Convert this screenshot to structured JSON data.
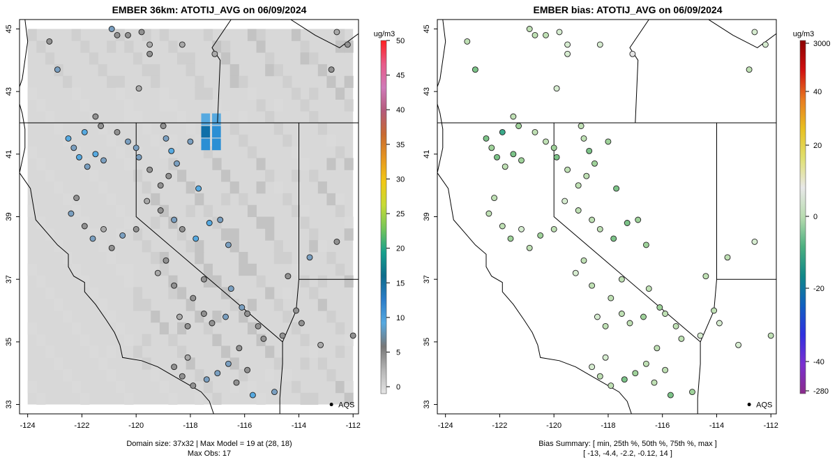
{
  "colors": {
    "domain_fill": "#d8d8d8",
    "water": "#ffffff",
    "coast": "#000000",
    "ticks": "#000000"
  },
  "left": {
    "title": "EMBER 36km: ATOTIJ_AVG on 06/09/2024",
    "caption_line1": "Domain size: 37x32 | Max Model = 19 at (28, 18)",
    "caption_line2": "Max Obs: 17"
  },
  "right": {
    "title": "EMBER bias: ATOTIJ_AVG on 06/09/2024",
    "caption_line1": "Bias Summary: [ min, 25th %, 50th %, 75th %, max ]",
    "caption_line2": "[ -13,   -4.4,   -2.2,   -0.12,   14 ]"
  },
  "aqs_label": "AQS",
  "chart_data": [
    {
      "type": "heatmap",
      "title": "EMBER 36km: ATOTIJ_AVG on 06/09/2024",
      "x_axis": {
        "ticks": [
          -124,
          -122,
          -120,
          -118,
          -116,
          -114,
          -112
        ],
        "range": [
          -124.3,
          -111.8
        ]
      },
      "y_axis": {
        "ticks": [
          33,
          35,
          37,
          39,
          41,
          43,
          45
        ],
        "range": [
          32.7,
          45.3
        ]
      },
      "colorbar": {
        "units": "ug/m3",
        "ticks": [
          0,
          5,
          10,
          15,
          20,
          25,
          30,
          35,
          40,
          45,
          50
        ],
        "range": [
          -1,
          50
        ],
        "colors": [
          "#e5e5e5",
          "#b5b5b5",
          "#777777",
          "#56a9e0",
          "#2b7cc8",
          "#0d6d8c",
          "#16a08c",
          "#74c55a",
          "#c6db35",
          "#f2c815",
          "#e69620",
          "#c86a30",
          "#b45a7a",
          "#d07ab8",
          "#e85a88",
          "#ff2020"
        ]
      },
      "highlight_cells": [
        {
          "lon": -117.4,
          "lat": 41.3,
          "value": 15
        },
        {
          "lon": -117.4,
          "lat": 41.7,
          "value": 18
        },
        {
          "lon": -117.0,
          "lat": 41.3,
          "value": 15
        },
        {
          "lon": -117.0,
          "lat": 41.7,
          "value": 14
        },
        {
          "lon": -117.4,
          "lat": 42.1,
          "value": 12
        },
        {
          "lon": -117.0,
          "lat": 42.1,
          "value": 11
        }
      ]
    },
    {
      "type": "scatter",
      "title": "EMBER bias: ATOTIJ_AVG on 06/09/2024",
      "x_axis": {
        "ticks": [
          -124,
          -122,
          -120,
          -118,
          -116,
          -114,
          -112
        ],
        "range": [
          -124.3,
          -111.8
        ]
      },
      "y_axis": {
        "ticks": [
          33,
          35,
          37,
          39,
          41,
          43,
          45
        ],
        "range": [
          32.7,
          45.3
        ]
      },
      "colorbar": {
        "units": "ug/m3",
        "ticks": [
          "3000",
          "40",
          "20",
          "0",
          "-20",
          "-40",
          "-280"
        ],
        "colors": [
          "#8b0000",
          "#d01010",
          "#e87a20",
          "#e8c020",
          "#e0e070",
          "#e8e8e8",
          "#b8dcb0",
          "#4cb080",
          "#108888",
          "#1060c0",
          "#3030e0",
          "#7a30d0",
          "#8a2b8a"
        ]
      },
      "summary": {
        "min": -13,
        "p25": -4.4,
        "p50": -2.2,
        "p75": -0.12,
        "max": 14
      }
    }
  ],
  "stations": [
    [
      -120.9,
      45.0,
      9,
      -4
    ],
    [
      -120.7,
      44.8,
      6,
      -3
    ],
    [
      -120.3,
      44.8,
      6,
      -3
    ],
    [
      -119.8,
      44.9,
      5,
      -2
    ],
    [
      -119.5,
      44.5,
      4,
      -1
    ],
    [
      -118.3,
      44.5,
      3,
      -0.5
    ],
    [
      -117.1,
      44.2,
      3,
      -0.3
    ],
    [
      -119.5,
      44.2,
      5,
      -2
    ],
    [
      -123.2,
      44.6,
      5,
      -3
    ],
    [
      -122.9,
      43.7,
      10,
      -6
    ],
    [
      -119.9,
      43.1,
      4,
      -2
    ],
    [
      -121.5,
      42.2,
      6,
      -4
    ],
    [
      -121.3,
      41.9,
      7,
      -5
    ],
    [
      -122.5,
      41.5,
      12,
      -7
    ],
    [
      -121.9,
      41.7,
      13,
      -8
    ],
    [
      -122.3,
      41.2,
      9,
      -5
    ],
    [
      -122.1,
      40.9,
      11,
      -6
    ],
    [
      -121.8,
      40.6,
      8,
      -4
    ],
    [
      -121.5,
      41.0,
      12,
      -7
    ],
    [
      -121.2,
      40.8,
      10,
      -5
    ],
    [
      -120.7,
      41.7,
      7,
      -4
    ],
    [
      -120.3,
      41.4,
      8,
      -4
    ],
    [
      -120.0,
      41.2,
      9,
      -5
    ],
    [
      -119.9,
      40.9,
      10,
      -6
    ],
    [
      -119.5,
      40.5,
      6,
      -3
    ],
    [
      -119.0,
      41.9,
      6,
      -3
    ],
    [
      -118.9,
      41.5,
      8,
      -4
    ],
    [
      -118.7,
      41.1,
      12,
      -7
    ],
    [
      -118.5,
      40.7,
      10,
      -5
    ],
    [
      -118.0,
      41.4,
      9,
      -5
    ],
    [
      -118.8,
      40.3,
      6,
      -3
    ],
    [
      -119.1,
      40.0,
      5,
      -3
    ],
    [
      -122.2,
      39.6,
      7,
      -4
    ],
    [
      -122.4,
      39.1,
      8,
      -4
    ],
    [
      -121.9,
      38.7,
      6,
      -3
    ],
    [
      -121.6,
      38.3,
      9,
      -5
    ],
    [
      -121.2,
      38.6,
      4,
      -2
    ],
    [
      -120.9,
      38.0,
      5,
      -3
    ],
    [
      -120.5,
      38.4,
      10,
      -5
    ],
    [
      -120.0,
      38.6,
      7,
      -4
    ],
    [
      -119.6,
      39.5,
      4,
      -2
    ],
    [
      -119.1,
      39.2,
      5,
      -3
    ],
    [
      -118.6,
      38.9,
      8,
      -4
    ],
    [
      -118.3,
      38.6,
      6,
      -3
    ],
    [
      -117.7,
      39.9,
      12,
      -7
    ],
    [
      -116.9,
      38.9,
      9,
      -5
    ],
    [
      -116.6,
      38.1,
      10,
      -5
    ],
    [
      -117.3,
      38.8,
      13,
      -7
    ],
    [
      -117.8,
      38.3,
      11,
      -6
    ],
    [
      -118.9,
      37.6,
      5,
      -3
    ],
    [
      -119.2,
      37.2,
      4,
      -2
    ],
    [
      -118.6,
      36.8,
      6,
      -3
    ],
    [
      -117.9,
      36.4,
      7,
      -4
    ],
    [
      -117.5,
      37.0,
      5,
      -3
    ],
    [
      -116.5,
      36.7,
      8,
      -4
    ],
    [
      -116.1,
      36.1,
      10,
      -5
    ],
    [
      -116.7,
      35.8,
      9,
      -5
    ],
    [
      -117.2,
      35.6,
      6,
      -3
    ],
    [
      -117.5,
      35.9,
      7,
      -4
    ],
    [
      -118.1,
      35.5,
      5,
      -3
    ],
    [
      -118.4,
      35.8,
      4,
      -2
    ],
    [
      -115.5,
      35.5,
      6,
      -3
    ],
    [
      -115.9,
      35.9,
      5,
      -3
    ],
    [
      -115.3,
      35.1,
      7,
      -4
    ],
    [
      -116.2,
      34.8,
      5,
      -3
    ],
    [
      -116.6,
      34.3,
      8,
      -4
    ],
    [
      -117.0,
      34.0,
      9,
      -5
    ],
    [
      -117.4,
      33.8,
      10,
      -6
    ],
    [
      -117.9,
      33.6,
      7,
      -4
    ],
    [
      -118.3,
      33.9,
      6,
      -3
    ],
    [
      -118.6,
      34.2,
      5,
      -2
    ],
    [
      -118.1,
      34.5,
      4,
      -2
    ],
    [
      -116.3,
      33.7,
      7,
      -4
    ],
    [
      -115.7,
      33.3,
      13,
      -6
    ],
    [
      -114.9,
      33.4,
      10,
      -5
    ],
    [
      -115.9,
      34.1,
      6,
      -3
    ],
    [
      -114.6,
      35.2,
      5,
      -2
    ],
    [
      -114.1,
      36.0,
      7,
      -3
    ],
    [
      -114.4,
      37.1,
      6,
      -3
    ],
    [
      -113.6,
      37.7,
      9,
      -4
    ],
    [
      -112.6,
      38.2,
      5,
      -2
    ],
    [
      -112.8,
      43.7,
      6,
      -3
    ],
    [
      -112.2,
      44.5,
      5,
      -2
    ],
    [
      -112.6,
      44.9,
      4,
      -1
    ],
    [
      -112.0,
      35.2,
      7,
      -3
    ],
    [
      -113.2,
      34.9,
      4,
      -2
    ],
    [
      -113.9,
      35.6,
      5,
      -2
    ]
  ]
}
